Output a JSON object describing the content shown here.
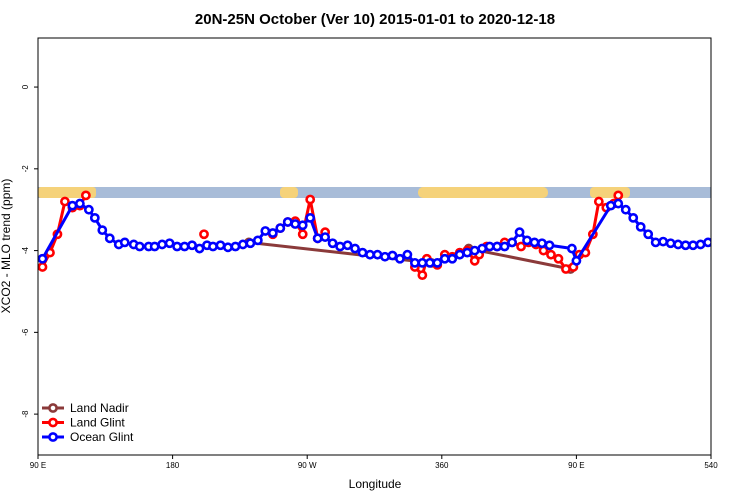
{
  "chart_data": {
    "type": "line",
    "title": "20N-25N October (Ver 10)   2015-01-01 to 2020-12-18",
    "x_label": "Longitude",
    "y_label": "XCO2 - MLO trend (ppm)",
    "xlim": [
      90,
      540
    ],
    "ylim": [
      -9,
      1.2
    ],
    "xticks": [
      {
        "value": 90,
        "label": "90 E"
      },
      180,
      {
        "value": 270,
        "label": "90 W"
      },
      360,
      {
        "value": 450,
        "label": "90 E"
      },
      540
    ],
    "yticks": [
      -8,
      -6,
      -4,
      -2,
      0
    ],
    "legend": "bottom-left",
    "series": [
      {
        "name": "Land Nadir",
        "color": "#8b3a3a",
        "x": [
          231,
          353,
          378,
          446
        ],
        "values": [
          -3.8,
          -4.3,
          -3.95,
          -4.45
        ]
      },
      {
        "name": "Land Glint",
        "color": "#ff0000",
        "x": [
          93,
          98,
          103,
          108,
          113,
          118,
          122,
          127,
          201,
          206,
          247,
          252,
          257,
          262,
          267,
          272,
          277,
          282,
          287,
          342,
          347,
          350,
          357,
          362,
          367,
          372,
          377,
          382,
          385,
          390,
          397,
          402,
          407,
          413,
          418,
          423,
          428,
          433,
          438,
          443,
          448,
          452,
          456,
          461,
          465,
          470,
          475,
          478
        ],
        "values": [
          -4.4,
          -4.05,
          -3.6,
          -2.8,
          -2.95,
          -2.9,
          -2.65,
          null,
          -3.6,
          null,
          -3.6,
          -3.45,
          -3.3,
          -3.28,
          -3.6,
          -2.75,
          -3.7,
          -3.55,
          null,
          -4.4,
          -4.6,
          -4.2,
          -4.35,
          -4.1,
          -4.15,
          -4.05,
          -4.0,
          -4.25,
          -4.1,
          -3.9,
          -3.9,
          -3.8,
          -3.8,
          -3.9,
          -3.8,
          -3.85,
          -4.0,
          -4.1,
          -4.2,
          -4.45,
          -4.4,
          -4.1,
          -4.05,
          -3.6,
          -2.8,
          -2.95,
          -2.85,
          -2.65
        ]
      },
      {
        "name": "Ocean Glint",
        "color": "#0000ff",
        "x": [
          93,
          113,
          118,
          124,
          128,
          133,
          138,
          144,
          148,
          154,
          158,
          164,
          168,
          173,
          178,
          183,
          188,
          193,
          198,
          203,
          207,
          212,
          217,
          222,
          227,
          232,
          237,
          242,
          247,
          252,
          257,
          262,
          267,
          272,
          277,
          282,
          287,
          292,
          297,
          302,
          307,
          312,
          317,
          322,
          327,
          332,
          337,
          342,
          347,
          352,
          357,
          362,
          367,
          372,
          377,
          382,
          387,
          392,
          397,
          402,
          407,
          412,
          417,
          422,
          427,
          432,
          447,
          450,
          473,
          478,
          483,
          488,
          493,
          498,
          503,
          508,
          513,
          518,
          523,
          528,
          533,
          538
        ],
        "values": [
          -4.2,
          -2.9,
          -2.85,
          -3.0,
          -3.2,
          -3.5,
          -3.7,
          -3.85,
          -3.8,
          -3.85,
          -3.9,
          -3.9,
          -3.9,
          -3.85,
          -3.82,
          -3.9,
          -3.9,
          -3.87,
          -3.95,
          -3.87,
          -3.9,
          -3.87,
          -3.92,
          -3.9,
          -3.85,
          -3.82,
          -3.75,
          -3.52,
          -3.57,
          -3.45,
          -3.3,
          -3.35,
          -3.38,
          -3.2,
          -3.7,
          -3.67,
          -3.82,
          -3.9,
          -3.87,
          -3.95,
          -4.05,
          -4.1,
          -4.1,
          -4.15,
          -4.12,
          -4.2,
          -4.1,
          -4.3,
          -4.3,
          -4.3,
          -4.3,
          -4.2,
          -4.2,
          -4.1,
          -4.05,
          -4.0,
          -3.95,
          -3.9,
          -3.9,
          -3.9,
          -3.8,
          -3.55,
          -3.75,
          -3.8,
          -3.82,
          -3.87,
          -3.95,
          -4.25,
          -2.9,
          -2.85,
          -3.0,
          -3.2,
          -3.42,
          -3.6,
          -3.8,
          -3.78,
          -3.82,
          -3.85,
          -3.87,
          -3.87,
          -3.85,
          -3.8
        ]
      }
    ]
  }
}
